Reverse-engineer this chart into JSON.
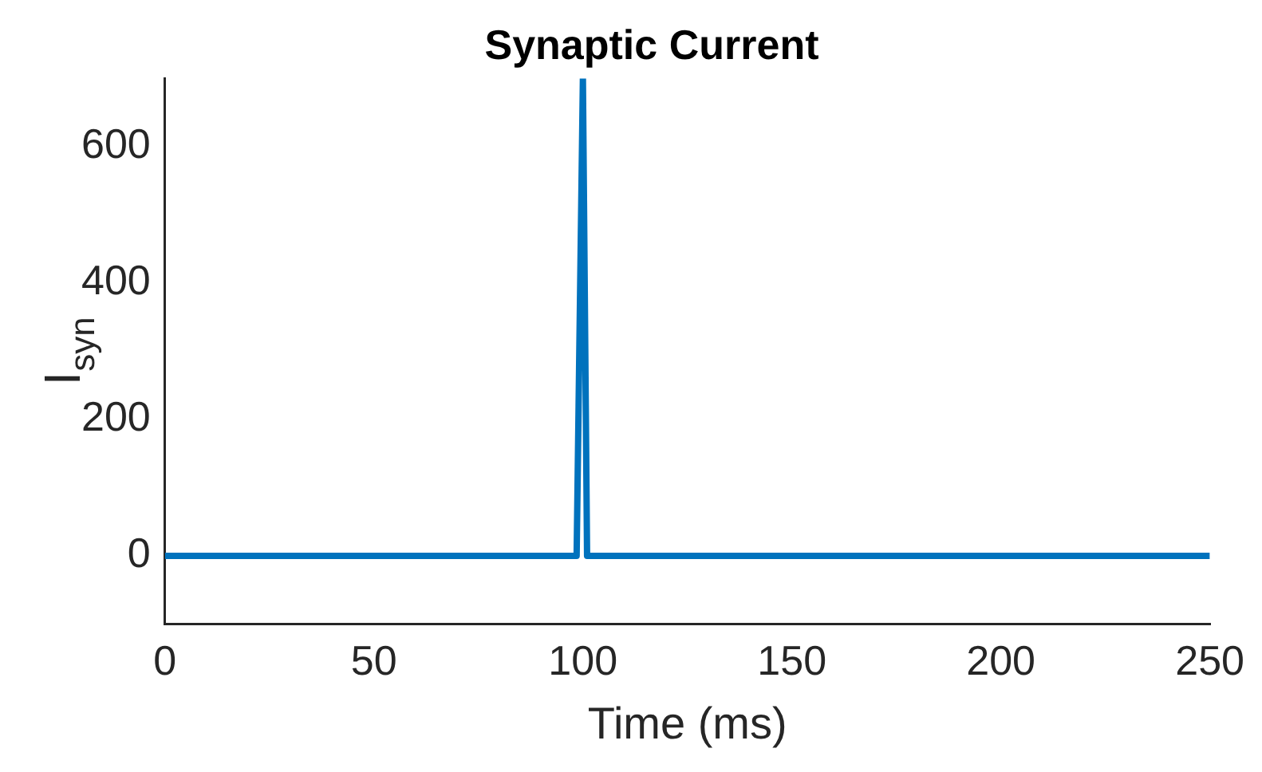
{
  "chart_data": {
    "type": "line",
    "title": "Synaptic Current",
    "xlabel": "Time (ms)",
    "ylabel": "I$_{syn}$",
    "x": [
      0,
      98.5,
      100,
      101,
      250
    ],
    "series": [
      {
        "color": "#0072bd",
        "values": [
          0,
          0,
          700,
          0,
          0
        ]
      }
    ],
    "xlim": [
      0,
      250
    ],
    "xticks": [
      0,
      50,
      100,
      150,
      200,
      250
    ],
    "ylim": [
      -100,
      700
    ],
    "yticks": [
      0,
      200,
      400,
      600
    ],
    "grid": false,
    "legend": false,
    "marker": "none",
    "line_style": "solid"
  }
}
